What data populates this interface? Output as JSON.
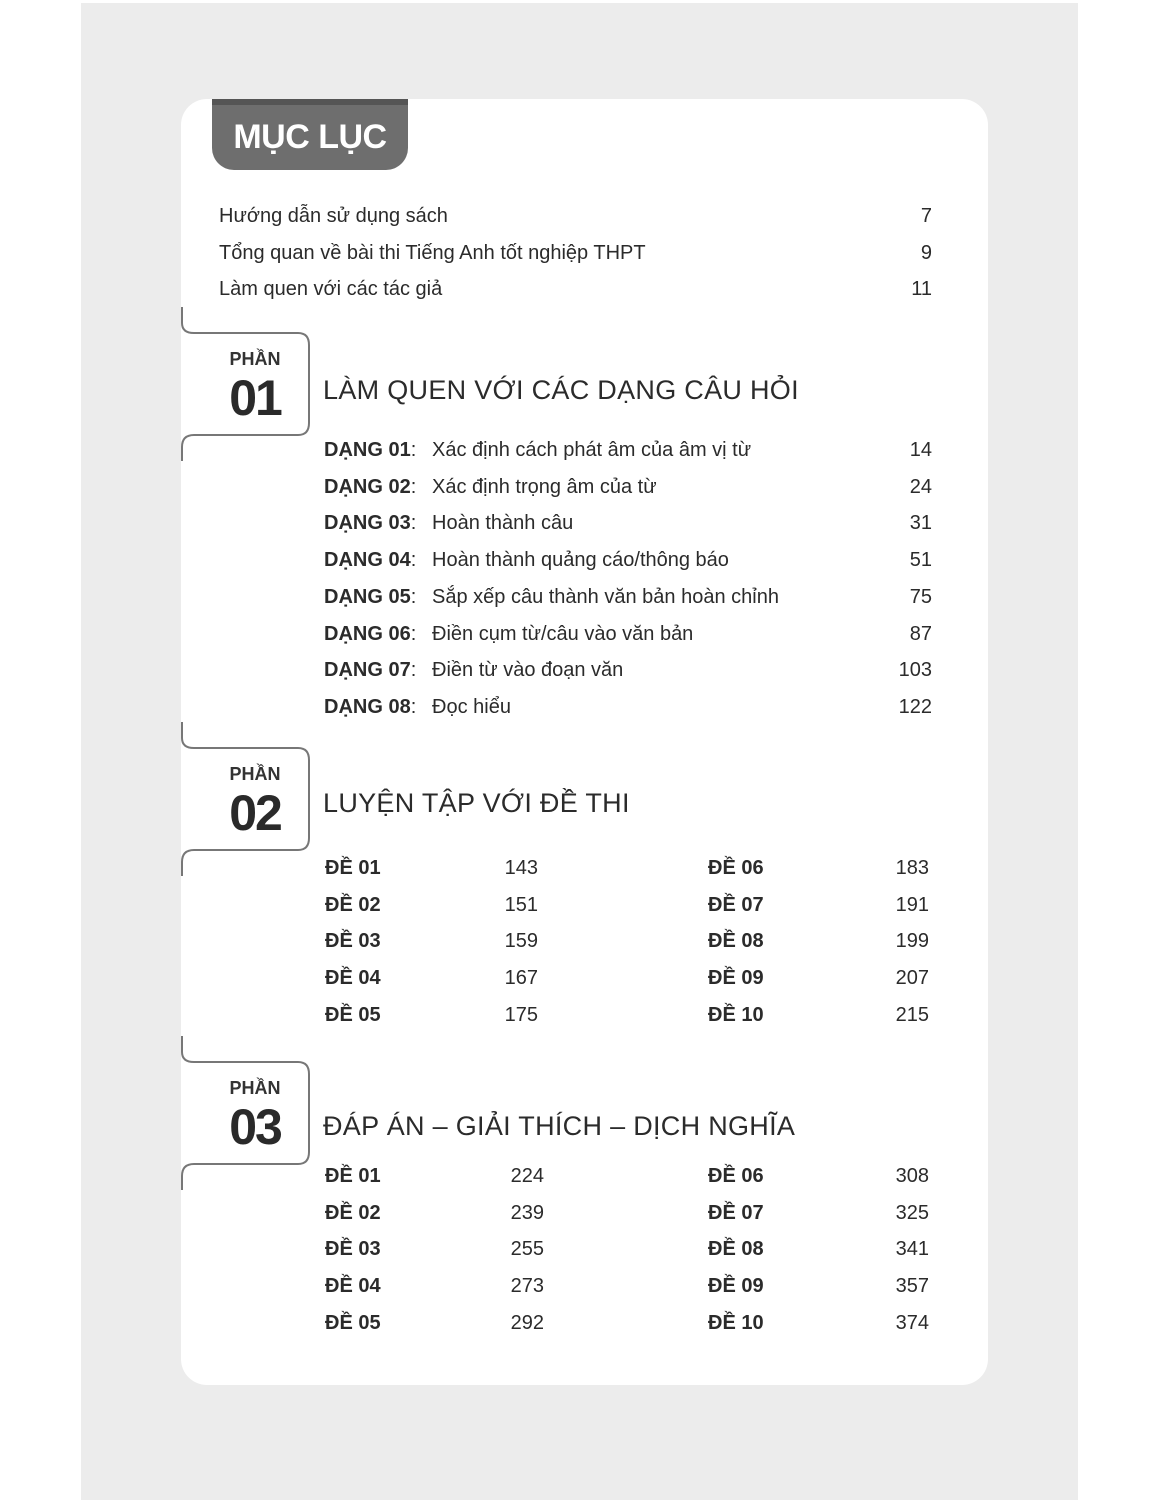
{
  "title": "MỤC LỤC",
  "intro": [
    {
      "label": "Hướng dẫn sử dụng sách",
      "page": "7"
    },
    {
      "label": "Tổng quan về bài thi Tiếng Anh tốt nghiệp THPT",
      "page": "9"
    },
    {
      "label": "Làm quen với các tác giả",
      "page": "11"
    }
  ],
  "parts": [
    {
      "phan": "PHẦN",
      "number": "01",
      "title": "LÀM QUEN VỚI CÁC DẠNG CÂU HỎI",
      "items": [
        {
          "code": "DẠNG 01",
          "label": "Xác định cách phát âm của âm vị từ",
          "page": "14"
        },
        {
          "code": "DẠNG 02",
          "label": "Xác định trọng âm của từ",
          "page": "24"
        },
        {
          "code": "DẠNG 03",
          "label": "Hoàn thành câu",
          "page": "31"
        },
        {
          "code": "DẠNG 04",
          "label": "Hoàn thành quảng cáo/thông báo",
          "page": "51"
        },
        {
          "code": "DẠNG 05",
          "label": "Sắp xếp câu thành văn bản hoàn chỉnh",
          "page": "75"
        },
        {
          "code": "DẠNG 06",
          "label": "Điền cụm từ/câu vào văn bản",
          "page": "87"
        },
        {
          "code": "DẠNG 07",
          "label": "Điền từ vào đoạn văn",
          "page": "103"
        },
        {
          "code": "DẠNG 08",
          "label": "Đọc hiểu",
          "page": "122"
        }
      ]
    },
    {
      "phan": "PHẦN",
      "number": "02",
      "title": "LUYỆN TẬP VỚI ĐỀ THI",
      "items": [
        {
          "code": "ĐỀ 01",
          "page": "143"
        },
        {
          "code": "ĐỀ 02",
          "page": "151"
        },
        {
          "code": "ĐỀ 03",
          "page": "159"
        },
        {
          "code": "ĐỀ 04",
          "page": "167"
        },
        {
          "code": "ĐỀ 05",
          "page": "175"
        },
        {
          "code": "ĐỀ 06",
          "page": "183"
        },
        {
          "code": "ĐỀ 07",
          "page": "191"
        },
        {
          "code": "ĐỀ 08",
          "page": "199"
        },
        {
          "code": "ĐỀ 09",
          "page": "207"
        },
        {
          "code": "ĐỀ 10",
          "page": "215"
        }
      ]
    },
    {
      "phan": "PHẦN",
      "number": "03",
      "title": "ĐÁP ÁN – GIẢI THÍCH – DỊCH NGHĨA",
      "items": [
        {
          "code": "ĐỀ 01",
          "page": "224"
        },
        {
          "code": "ĐỀ 02",
          "page": "239"
        },
        {
          "code": "ĐỀ 03",
          "page": "255"
        },
        {
          "code": "ĐỀ 04",
          "page": "273"
        },
        {
          "code": "ĐỀ 05",
          "page": "292"
        },
        {
          "code": "ĐỀ 06",
          "page": "308"
        },
        {
          "code": "ĐỀ 07",
          "page": "325"
        },
        {
          "code": "ĐỀ 08",
          "page": "341"
        },
        {
          "code": "ĐỀ 09",
          "page": "357"
        },
        {
          "code": "ĐỀ 10",
          "page": "374"
        }
      ]
    }
  ]
}
